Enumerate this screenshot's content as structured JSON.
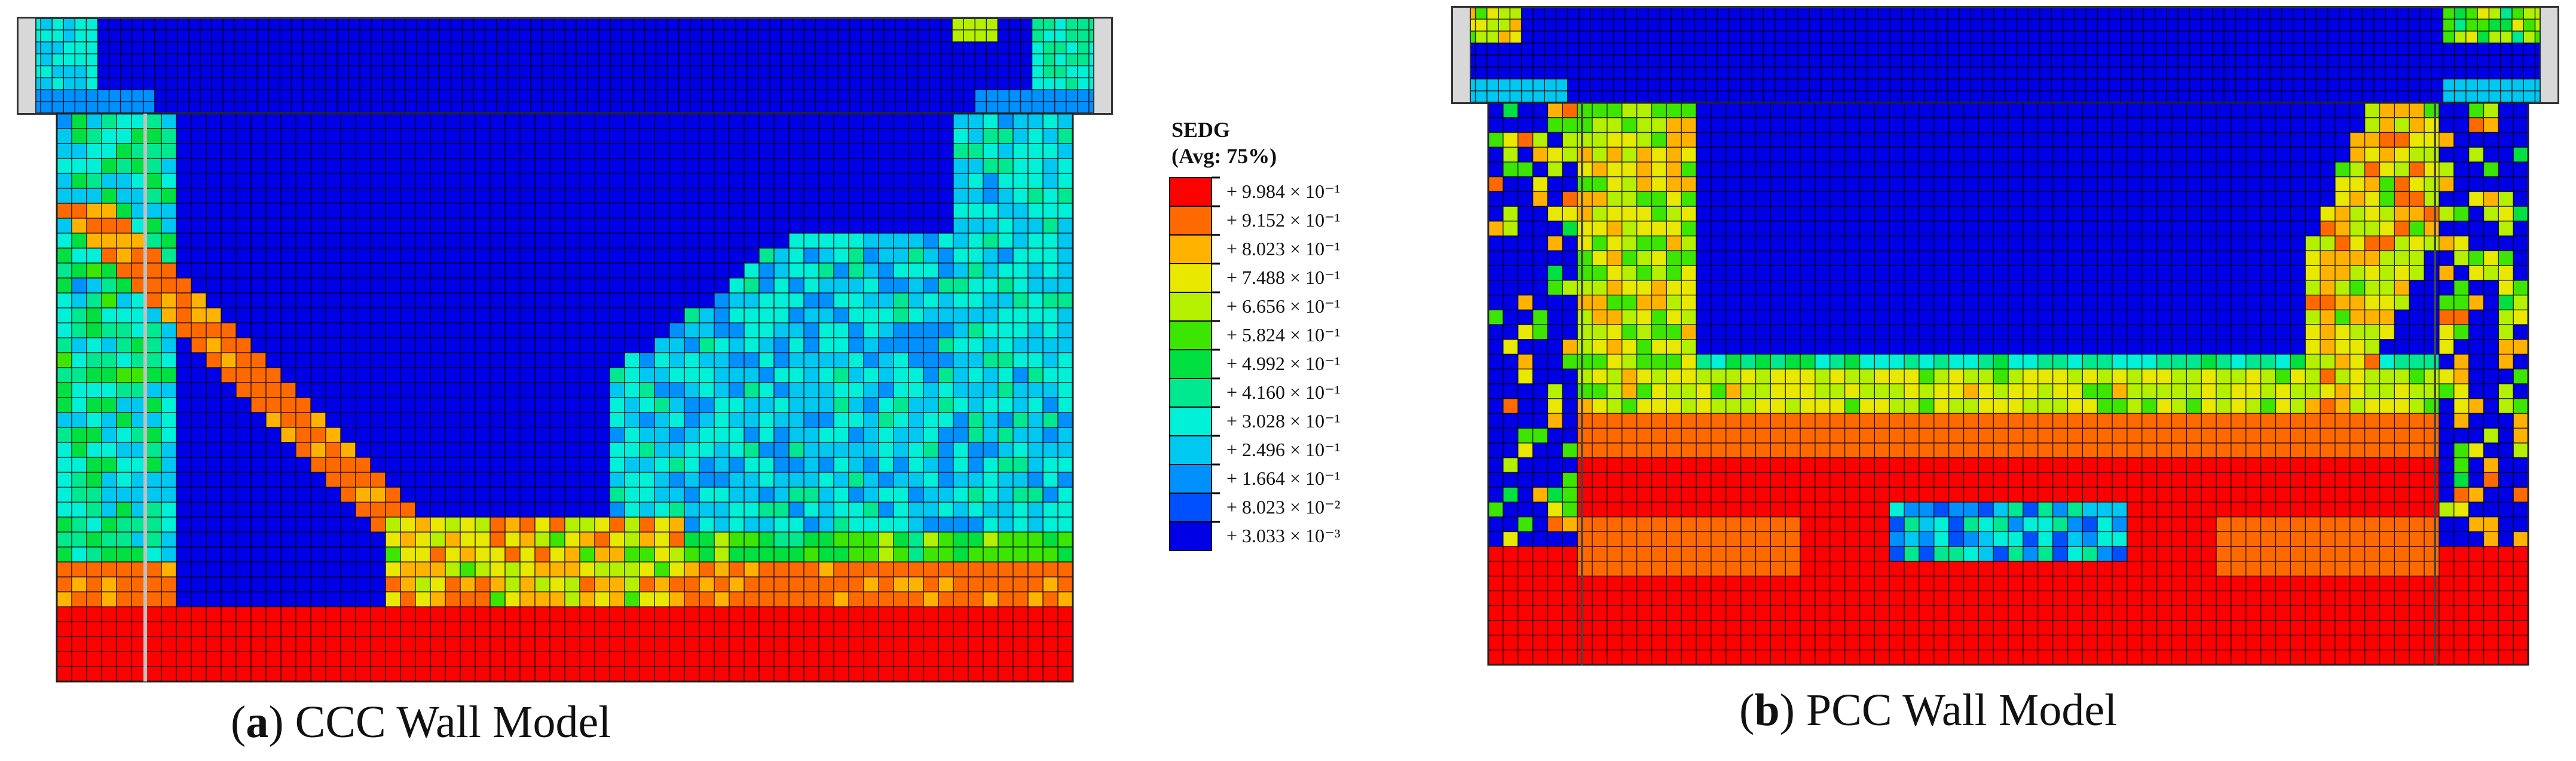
{
  "legend": {
    "title_line1": "SEDG",
    "title_line2": "(Avg: 75%)",
    "entries": [
      {
        "label": "+ 9.984 × 10⁻¹",
        "color": "#ff0000"
      },
      {
        "label": "+ 9.152 × 10⁻¹",
        "color": "#ff6a00"
      },
      {
        "label": "+ 8.023 × 10⁻¹",
        "color": "#ffb300"
      },
      {
        "label": "+ 7.488 × 10⁻¹",
        "color": "#e8e800"
      },
      {
        "label": "+ 6.656 × 10⁻¹",
        "color": "#b4f000"
      },
      {
        "label": "+ 5.824 × 10⁻¹",
        "color": "#3ce600"
      },
      {
        "label": "+ 4.992 × 10⁻¹",
        "color": "#00e040"
      },
      {
        "label": "+ 4.160 × 10⁻¹",
        "color": "#00e890"
      },
      {
        "label": "+ 3.028 × 10⁻¹",
        "color": "#00f0d8"
      },
      {
        "label": "+ 2.496 × 10⁻¹",
        "color": "#00c8f0"
      },
      {
        "label": "+ 1.664 × 10⁻¹",
        "color": "#0090ff"
      },
      {
        "label": "+ 8.023 × 10⁻²",
        "color": "#0050ff"
      },
      {
        "label": "+ 3.033 × 10⁻³",
        "color": "#0000e6"
      }
    ]
  },
  "panel_a": {
    "caption_letter": "a",
    "caption_text": " CCC Wall Model"
  },
  "panel_b": {
    "caption_letter": "b",
    "caption_text": " PCC Wall Model"
  },
  "colors": {
    "mesh": "#000000",
    "background_low": "#0000e6",
    "damage_high": "#ff0000"
  }
}
